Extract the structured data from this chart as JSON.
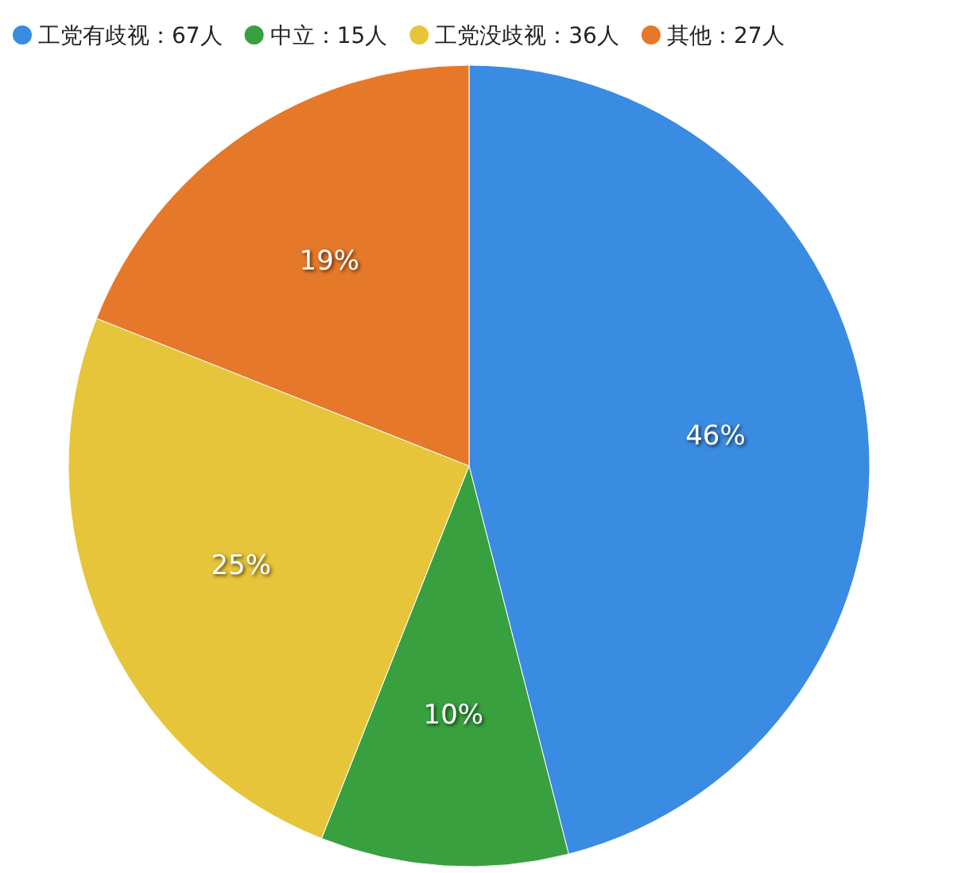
{
  "chart_data": {
    "type": "pie",
    "categories": [
      "工党有歧视：67人",
      "中立：15人",
      "工党没歧视：36人",
      "其他：27人"
    ],
    "values": [
      46,
      10,
      25,
      19
    ],
    "colors": [
      "#3a8be2",
      "#38a03e",
      "#e6c53a",
      "#e6782a"
    ],
    "value_labels": [
      "46%",
      "10%",
      "25%",
      "19%"
    ],
    "legend": "top"
  }
}
